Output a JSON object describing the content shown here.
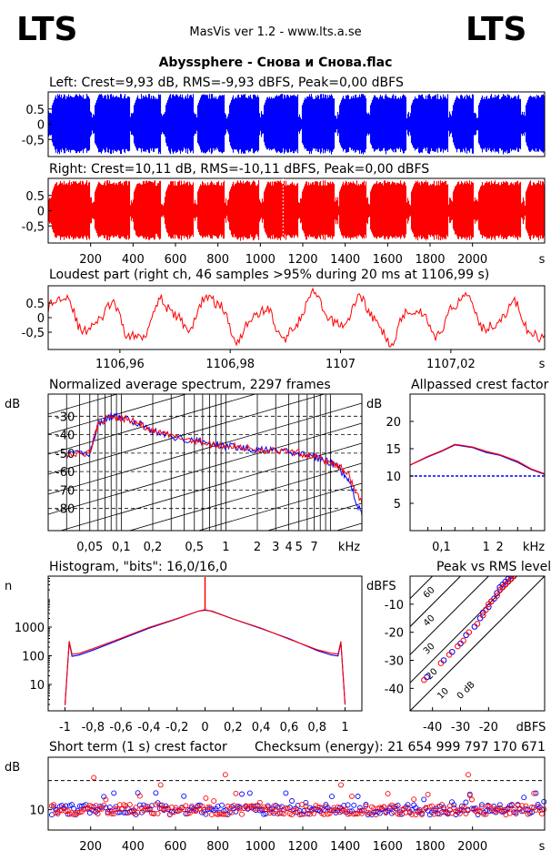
{
  "header": {
    "logo_left": "LTS",
    "logo_right": "LTS",
    "app_title": "MasVis ver 1.2 - www.lts.a.se",
    "file_title": "Abyssphere - Снова и Снова.flac"
  },
  "colors": {
    "left": "#0000ff",
    "right": "#ff0000",
    "axis": "#000000"
  },
  "chart_data": [
    {
      "id": "left",
      "type": "area",
      "title": "Left: Crest=9,93 dB, RMS=-9,93 dBFS, Peak=0,00 dBFS",
      "ylim": [
        -1,
        1
      ],
      "yticks": [
        "0.5",
        "0",
        "-0,5"
      ],
      "series": [
        {
          "name": "Left",
          "envelope_max": 1.0
        }
      ]
    },
    {
      "id": "right",
      "type": "area",
      "title": "Right: Crest=10,11 dB, RMS=-10,11 dBFS, Peak=0,00 dBFS",
      "ylim": [
        -1,
        1
      ],
      "yticks": [
        "0.5",
        "0",
        "-0,5"
      ],
      "xticks": [
        "200",
        "400",
        "600",
        "800",
        "1000",
        "1200",
        "1400",
        "1600",
        "1800",
        "2000",
        "s"
      ],
      "xlim": [
        0,
        2340
      ],
      "series": [
        {
          "name": "Right",
          "envelope_max": 1.0
        }
      ]
    },
    {
      "id": "loudest",
      "type": "line",
      "title": "Loudest part (right ch, 46 samples >95% during 20 ms at 1106,99 s)",
      "ylim": [
        -1,
        1
      ],
      "yticks": [
        "0.5",
        "0",
        "-0,5"
      ],
      "xticks": [
        "1106,96",
        "1106,98",
        "1107",
        "1107,02",
        "s"
      ],
      "xlim": [
        1106.947,
        1107.037
      ]
    },
    {
      "id": "spectrum",
      "type": "line",
      "title": "Normalized average spectrum, 2297 frames",
      "ylabel": "dB",
      "yticks": [
        "-30",
        "-40",
        "-50",
        "-60",
        "-70",
        "-80"
      ],
      "xticks": [
        "0,05",
        "0,1",
        "0,2",
        "0,5",
        "1",
        "2",
        "3",
        "4",
        "5",
        "7",
        "kHz"
      ],
      "xlim": [
        0.02,
        20
      ],
      "ylim": [
        -92,
        -18
      ],
      "series": [
        {
          "name": "Left",
          "x": [
            0.03,
            0.05,
            0.06,
            0.08,
            0.1,
            0.15,
            0.2,
            0.3,
            0.5,
            0.7,
            1,
            1.5,
            2,
            3,
            5,
            7,
            10,
            12,
            15,
            20
          ],
          "y": [
            -51,
            -50,
            -34,
            -30,
            -31,
            -34,
            -38,
            -41,
            -43,
            -45,
            -46,
            -47,
            -48,
            -49,
            -50,
            -52,
            -55,
            -58,
            -65,
            -84
          ]
        },
        {
          "name": "Right",
          "x": [
            0.03,
            0.05,
            0.06,
            0.08,
            0.1,
            0.15,
            0.2,
            0.3,
            0.5,
            0.7,
            1,
            1.5,
            2,
            3,
            5,
            7,
            10,
            12,
            15,
            20
          ],
          "y": [
            -51,
            -50,
            -34,
            -30,
            -31,
            -34,
            -38,
            -41,
            -43,
            -45,
            -46,
            -47,
            -48,
            -49,
            -50,
            -52,
            -55,
            -57,
            -62,
            -78
          ]
        }
      ]
    },
    {
      "id": "crest",
      "type": "line",
      "title": "Allpassed crest factor",
      "ylabel": "dB",
      "yticks": [
        "20",
        "15",
        "10",
        "5"
      ],
      "xticks": [
        "0,1",
        "1",
        "2",
        "kHz"
      ],
      "ylim": [
        0,
        25
      ],
      "reference_db": 10,
      "series": [
        {
          "name": "Left",
          "x": [
            0.02,
            0.05,
            0.1,
            0.2,
            0.5,
            1,
            2,
            5,
            10,
            20
          ],
          "y": [
            12,
            13.5,
            14.5,
            15.7,
            15.2,
            14.3,
            13.8,
            12.5,
            11.2,
            10.3
          ]
        },
        {
          "name": "Right",
          "x": [
            0.02,
            0.05,
            0.1,
            0.2,
            0.5,
            1,
            2,
            5,
            10,
            20
          ],
          "y": [
            12,
            13.6,
            14.6,
            15.8,
            15.3,
            14.5,
            13.9,
            12.7,
            11.3,
            10.4
          ]
        }
      ]
    },
    {
      "id": "histogram",
      "type": "line",
      "title": "Histogram, \"bits\": 16,0/16,0",
      "ylabel": "n",
      "yticks": [
        "1000",
        "100",
        "10"
      ],
      "xticks": [
        "-1",
        "-0,8",
        "-0,6",
        "-0,4",
        "-0,2",
        "0",
        "0,2",
        "0,4",
        "0,6",
        "0,8",
        "1"
      ],
      "xlim": [
        -1.12,
        1.12
      ],
      "ylog": true,
      "series": [
        {
          "name": "Left",
          "x": [
            -1,
            -0.97,
            -0.95,
            -0.9,
            -0.8,
            -0.6,
            -0.4,
            -0.2,
            -0.05,
            0,
            0.05,
            0.2,
            0.4,
            0.6,
            0.8,
            0.9,
            0.95,
            0.97,
            1
          ],
          "y": [
            2,
            300,
            100,
            110,
            160,
            380,
            900,
            1900,
            3500,
            4000,
            3500,
            1900,
            900,
            380,
            160,
            110,
            100,
            300,
            2
          ]
        },
        {
          "name": "Right",
          "x": [
            -1,
            -0.97,
            -0.95,
            -0.9,
            -0.8,
            -0.6,
            -0.4,
            -0.2,
            -0.05,
            0,
            0.05,
            0.2,
            0.4,
            0.6,
            0.8,
            0.9,
            0.95,
            0.97,
            1
          ],
          "y": [
            2,
            320,
            110,
            120,
            170,
            400,
            950,
            2000,
            3600,
            4200,
            3600,
            2000,
            950,
            400,
            170,
            120,
            110,
            320,
            2
          ]
        }
      ],
      "spike": {
        "x": 0,
        "y": 80000
      }
    },
    {
      "id": "peakrms",
      "type": "scatter",
      "title": "Peak vs RMS level",
      "ylabel": "dBFS",
      "xlabel": "dBFS",
      "yticks": [
        "-10",
        "-20",
        "-30",
        "-40"
      ],
      "xticks": [
        "-40",
        "-30",
        "-20",
        "dBFS"
      ],
      "diagonals": [
        "60",
        "40",
        "30",
        "20",
        "10",
        "0 dB"
      ],
      "series": [
        {
          "name": "Left",
          "points": [
            [
              -42,
              -36
            ],
            [
              -36,
              -30
            ],
            [
              -33,
              -27
            ],
            [
              -30,
              -24
            ],
            [
              -28,
              -21
            ],
            [
              -25,
              -18
            ],
            [
              -23,
              -15
            ],
            [
              -22,
              -13
            ],
            [
              -20,
              -11
            ],
            [
              -19,
              -9
            ],
            [
              -18,
              -8
            ],
            [
              -17,
              -6
            ],
            [
              -16,
              -4
            ],
            [
              -15,
              -3
            ],
            [
              -14,
              -2
            ],
            [
              -13,
              -1
            ],
            [
              -12,
              0
            ]
          ]
        },
        {
          "name": "Right",
          "points": [
            [
              -43,
              -37
            ],
            [
              -37,
              -31
            ],
            [
              -34,
              -28
            ],
            [
              -31,
              -25
            ],
            [
              -29,
              -23
            ],
            [
              -27,
              -20
            ],
            [
              -24,
              -17
            ],
            [
              -22,
              -14
            ],
            [
              -21,
              -12
            ],
            [
              -20,
              -10
            ],
            [
              -19,
              -9
            ],
            [
              -17,
              -7
            ],
            [
              -16,
              -5
            ],
            [
              -15,
              -4
            ],
            [
              -14,
              -3
            ],
            [
              -13,
              -2
            ],
            [
              -12,
              -1
            ],
            [
              -11,
              0
            ]
          ]
        }
      ]
    },
    {
      "id": "shortcrest",
      "type": "scatter",
      "title": "Short term (1 s) crest factor",
      "checksum": "Checksum (energy):  21 654 999 797 170 671",
      "ylabel": "dB",
      "yticks": [
        "10"
      ],
      "xticks": [
        "200",
        "400",
        "600",
        "800",
        "1000",
        "1200",
        "1400",
        "1600",
        "1800",
        "2000",
        "s"
      ],
      "xlim": [
        0,
        2340
      ],
      "reference_db": 20
    }
  ]
}
